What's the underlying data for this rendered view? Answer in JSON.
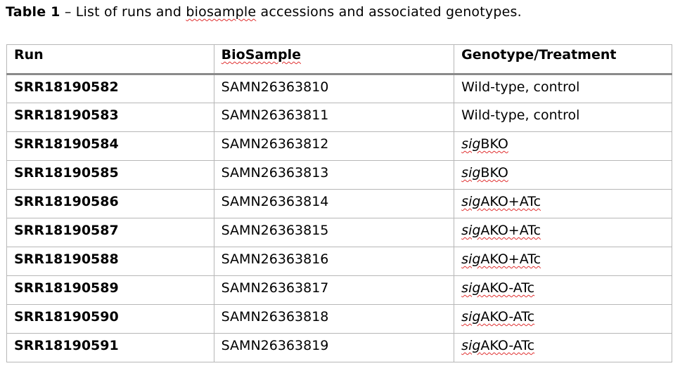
{
  "caption": {
    "label": "Table 1",
    "text_before": " – List of runs and ",
    "text_squiggle": "biosample",
    "text_after": " accessions and associated genotypes."
  },
  "table": {
    "headers": [
      "Run",
      "BioSample",
      "Genotype/Treatment"
    ],
    "rows": [
      {
        "run": "SRR18190582",
        "biosample": "SAMN26363810",
        "geno_prefix": "",
        "geno_rest": "Wild-type, control"
      },
      {
        "run": "SRR18190583",
        "biosample": "SAMN26363811",
        "geno_prefix": "",
        "geno_rest": "Wild-type, control"
      },
      {
        "run": "SRR18190584",
        "biosample": "SAMN26363812",
        "geno_prefix": "sig",
        "geno_rest": "BKO"
      },
      {
        "run": "SRR18190585",
        "biosample": "SAMN26363813",
        "geno_prefix": "sig",
        "geno_rest": "BKO"
      },
      {
        "run": "SRR18190586",
        "biosample": "SAMN26363814",
        "geno_prefix": "sig",
        "geno_rest": "AKO+ATc"
      },
      {
        "run": "SRR18190587",
        "biosample": "SAMN26363815",
        "geno_prefix": "sig",
        "geno_rest": "AKO+ATc"
      },
      {
        "run": "SRR18190588",
        "biosample": "SAMN26363816",
        "geno_prefix": "sig",
        "geno_rest": "AKO+ATc"
      },
      {
        "run": "SRR18190589",
        "biosample": "SAMN26363817",
        "geno_prefix": "sig",
        "geno_rest": "AKO-ATc"
      },
      {
        "run": "SRR18190590",
        "biosample": "SAMN26363818",
        "geno_prefix": "sig",
        "geno_rest": "AKO-ATc"
      },
      {
        "run": "SRR18190591",
        "biosample": "SAMN26363819",
        "geno_prefix": "sig",
        "geno_rest": "AKO-ATc"
      }
    ]
  }
}
